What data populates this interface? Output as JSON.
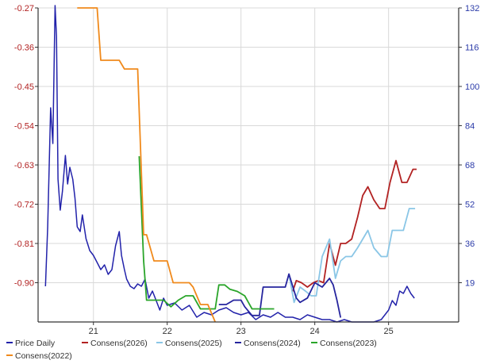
{
  "chart_data": {
    "type": "line",
    "y_left": {
      "ticks": [
        "-0.27",
        "-0.36",
        "-0.45",
        "-0.54",
        "-0.63",
        "-0.72",
        "-0.81",
        "-0.90"
      ],
      "range": [
        -0.99,
        -0.27
      ]
    },
    "y_right": {
      "ticks": [
        "132",
        "116",
        "100",
        "84",
        "68",
        "52",
        "36",
        "19"
      ],
      "range": [
        0,
        132
      ]
    },
    "x_axis": {
      "ticks": [
        "21",
        "22",
        "23",
        "24",
        "25"
      ],
      "tick_values": [
        21,
        22,
        23,
        24,
        25
      ],
      "range": [
        20.25,
        25.95
      ]
    },
    "grid": true,
    "legend_placement": "bottom",
    "series": [
      {
        "name": "Price Daily",
        "axis": "right",
        "color": "#2222aa",
        "x": [
          20.35,
          20.38,
          20.42,
          20.45,
          20.48,
          20.5,
          20.52,
          20.55,
          20.58,
          20.62,
          20.65,
          20.68,
          20.72,
          20.75,
          20.78,
          20.82,
          20.85,
          20.9,
          20.95,
          21.0,
          21.05,
          21.1,
          21.15,
          21.2,
          21.25,
          21.3,
          21.35,
          21.38,
          21.42,
          21.45,
          21.5,
          21.55,
          21.6,
          21.65,
          21.7,
          21.75,
          21.8,
          21.85,
          21.9,
          21.95,
          22.0,
          22.1,
          22.2,
          22.3,
          22.4,
          22.5,
          22.6,
          22.7,
          22.8,
          22.9,
          23.0,
          23.1,
          23.2,
          23.3,
          23.4,
          23.5,
          23.6,
          23.7,
          23.8,
          23.9,
          24.0,
          24.1,
          24.2,
          24.3,
          24.4,
          24.5,
          24.6,
          24.7,
          24.8,
          24.9,
          25.0,
          25.05,
          25.1,
          25.15,
          25.2,
          25.25,
          25.3,
          25.35
        ],
        "y": [
          15,
          40,
          90,
          75,
          133,
          120,
          60,
          47,
          55,
          70,
          58,
          65,
          60,
          52,
          40,
          38,
          45,
          35,
          30,
          28,
          25,
          22,
          24,
          20,
          22,
          32,
          38,
          28,
          22,
          18,
          15,
          14,
          16,
          15,
          18,
          10,
          13,
          9,
          5,
          10,
          7,
          8,
          5,
          7,
          2,
          4,
          3,
          5,
          6,
          4,
          3,
          4,
          1,
          3,
          2,
          4,
          2,
          2,
          1,
          3,
          2,
          1,
          1,
          0,
          1,
          0,
          0,
          0,
          0,
          1,
          5,
          9,
          7,
          13,
          12,
          15,
          12,
          10
        ]
      },
      {
        "name": "Consens(2026)",
        "axis": "left",
        "color": "#b22222",
        "x": [
          23.7,
          23.75,
          23.82,
          23.9,
          23.98,
          24.05,
          24.12,
          24.2,
          24.28,
          24.35,
          24.42,
          24.5,
          24.58,
          24.65,
          24.72,
          24.8,
          24.88,
          24.95,
          25.02,
          25.1,
          25.18,
          25.25,
          25.33,
          25.38
        ],
        "y": [
          -0.92,
          -0.895,
          -0.9,
          -0.91,
          -0.9,
          -0.895,
          -0.9,
          -0.81,
          -0.86,
          -0.81,
          -0.81,
          -0.8,
          -0.75,
          -0.7,
          -0.68,
          -0.71,
          -0.73,
          -0.73,
          -0.67,
          -0.62,
          -0.67,
          -0.67,
          -0.64,
          -0.64
        ]
      },
      {
        "name": "Consens(2025)",
        "axis": "left",
        "color": "#8ac6e6",
        "x": [
          23.65,
          23.72,
          23.8,
          23.88,
          23.95,
          24.02,
          24.1,
          24.2,
          24.28,
          24.35,
          24.42,
          24.5,
          24.58,
          24.65,
          24.72,
          24.8,
          24.9,
          24.98,
          25.05,
          25.12,
          25.2,
          25.28,
          25.36
        ],
        "y": [
          -0.88,
          -0.945,
          -0.91,
          -0.92,
          -0.93,
          -0.93,
          -0.84,
          -0.8,
          -0.89,
          -0.85,
          -0.84,
          -0.84,
          -0.82,
          -0.8,
          -0.78,
          -0.82,
          -0.84,
          -0.84,
          -0.78,
          -0.78,
          -0.78,
          -0.73,
          -0.73
        ]
      },
      {
        "name": "Consens(2024)",
        "axis": "left",
        "color": "#26259e",
        "x": [
          22.7,
          22.8,
          22.9,
          23.0,
          23.05,
          23.15,
          23.25,
          23.3,
          23.5,
          23.6,
          23.65,
          23.75,
          23.8,
          23.9,
          24.0,
          24.1,
          24.15,
          24.2,
          24.25,
          24.3,
          24.35
        ],
        "y": [
          -0.95,
          -0.95,
          -0.94,
          -0.94,
          -0.955,
          -0.975,
          -0.975,
          -0.91,
          -0.91,
          -0.91,
          -0.88,
          -0.935,
          -0.945,
          -0.935,
          -0.9,
          -0.91,
          -0.9,
          -0.89,
          -0.905,
          -0.94,
          -0.98
        ]
      },
      {
        "name": "Consens(2023)",
        "axis": "left",
        "color": "#2aa52a",
        "x": [
          21.62,
          21.68,
          21.72,
          21.85,
          21.95,
          22.05,
          22.15,
          22.25,
          22.35,
          22.45,
          22.55,
          22.65,
          22.7,
          22.78,
          22.85,
          22.95,
          23.05,
          23.15,
          23.25,
          23.35,
          23.45
        ],
        "y": [
          -0.61,
          -0.85,
          -0.94,
          -0.94,
          -0.94,
          -0.955,
          -0.94,
          -0.93,
          -0.93,
          -0.96,
          -0.96,
          -0.96,
          -0.905,
          -0.905,
          -0.915,
          -0.92,
          -0.93,
          -0.96,
          -0.96,
          -0.96,
          -0.96
        ]
      },
      {
        "name": "Consens(2022)",
        "axis": "left",
        "color": "#f08a1c",
        "x": [
          20.78,
          21.0,
          21.05,
          21.1,
          21.35,
          21.42,
          21.48,
          21.6,
          21.68,
          21.72,
          21.82,
          21.88,
          22.0,
          22.08,
          22.15,
          22.3,
          22.35,
          22.45,
          22.55,
          22.65
        ],
        "y": [
          -0.27,
          -0.27,
          -0.27,
          -0.39,
          -0.39,
          -0.41,
          -0.41,
          -0.41,
          -0.79,
          -0.79,
          -0.85,
          -0.85,
          -0.85,
          -0.9,
          -0.9,
          -0.9,
          -0.91,
          -0.95,
          -0.95,
          -0.99
        ]
      }
    ]
  }
}
